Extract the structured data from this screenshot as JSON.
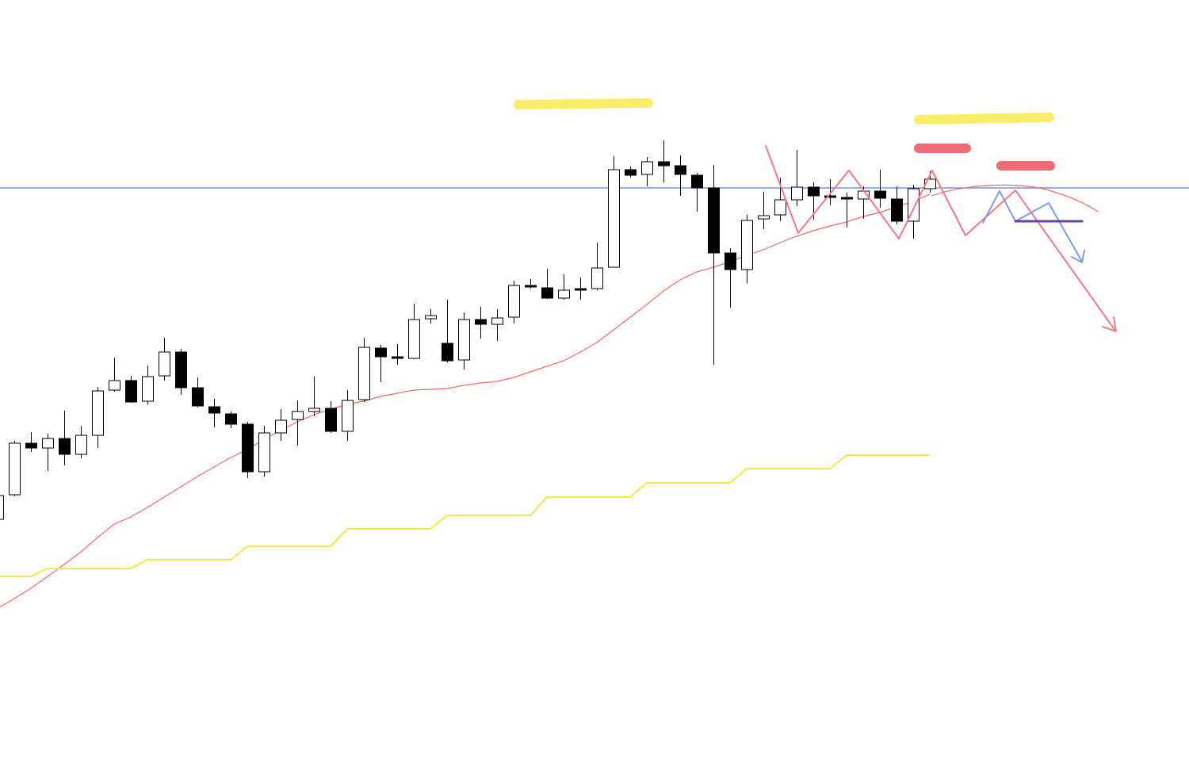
{
  "chart_data": {
    "type": "candlestick",
    "ylim": [
      0,
      956
    ],
    "up_color": "#ffffff",
    "down_color": "#000000",
    "open": [
      301,
      332,
      397,
      391,
      403,
      383,
      407,
      464,
      476,
      450,
      482,
      512,
      467,
      443,
      434,
      421,
      361,
      410,
      427,
      437,
      441,
      412,
      452,
      517,
      506,
      504,
      554,
      523,
      502,
      553,
      547,
      556,
      596,
      593,
      580,
      592,
      592,
      619,
      742,
      736,
      752,
      747,
      735,
      719,
      637,
      616,
      680,
      685,
      704,
      720,
      709,
      707,
      705,
      715,
      705,
      677,
      718
    ],
    "high": [
      334,
      400,
      411,
      409,
      438,
      419,
      468,
      505,
      482,
      495,
      530,
      516,
      480,
      453,
      437,
      424,
      419,
      440,
      451,
      481,
      450,
      464,
      530,
      521,
      522,
      573,
      566,
      578,
      562,
      569,
      566,
      602,
      604,
      617,
      610,
      606,
      650,
      759,
      746,
      758,
      779,
      760,
      738,
      748,
      643,
      685,
      714,
      732,
      767,
      726,
      730,
      713,
      721,
      742,
      721,
      723,
      740
    ],
    "low": [
      301,
      330,
      386,
      362,
      369,
      378,
      391,
      462,
      448,
      446,
      476,
      458,
      442,
      417,
      416,
      353,
      355,
      400,
      394,
      431,
      410,
      400,
      449,
      474,
      496,
      503,
      548,
      499,
      490,
      529,
      526,
      548,
      592,
      579,
      578,
      578,
      590,
      619,
      732,
      721,
      726,
      709,
      689,
      496,
      568,
      599,
      667,
      677,
      696,
      679,
      697,
      669,
      680,
      694,
      673,
      655,
      713
    ],
    "close": [
      331,
      397,
      391,
      403,
      383,
      407,
      463,
      476,
      449,
      481,
      512,
      467,
      444,
      435,
      421,
      361,
      410,
      426,
      437,
      441,
      412,
      451,
      518,
      506,
      504,
      553,
      558,
      501,
      553,
      547,
      555,
      596,
      594,
      580,
      590,
      590,
      618,
      742,
      735,
      752,
      747,
      736,
      719,
      637,
      616,
      678,
      684,
      704,
      720,
      709,
      707,
      705,
      715,
      706,
      677,
      718,
      730
    ],
    "overlays": [
      {
        "type": "line",
        "color": "#f26b6b",
        "values": [
          189,
          201,
          214,
          229,
          244,
          260,
          278,
          295,
          304,
          316,
          329,
          342,
          355,
          367,
          379,
          389,
          402,
          413,
          424,
          433,
          440,
          446,
          450,
          456,
          460,
          464,
          465,
          466,
          470,
          473,
          475,
          480,
          487,
          494,
          501,
          512,
          524,
          540,
          556,
          572,
          589,
          603,
          613,
          619,
          626,
          634,
          641,
          650,
          658,
          665,
          671,
          676,
          683,
          688,
          695,
          702,
          711
        ]
      },
      {
        "type": "line",
        "color": "#f5e84a",
        "values": [
          229,
          229,
          229,
          239,
          239,
          239,
          239,
          239,
          239,
          250,
          250,
          250,
          250,
          250,
          250,
          267,
          267,
          267,
          267,
          267,
          267,
          289,
          289,
          289,
          289,
          289,
          289,
          306,
          306,
          306,
          306,
          306,
          306,
          329,
          329,
          329,
          329,
          329,
          329,
          347,
          347,
          347,
          347,
          347,
          347,
          365,
          365,
          365,
          365,
          365,
          365,
          382,
          382,
          382,
          382,
          382,
          382
        ]
      }
    ],
    "hline": {
      "value": 719,
      "color": "#5b7fe0"
    }
  }
}
